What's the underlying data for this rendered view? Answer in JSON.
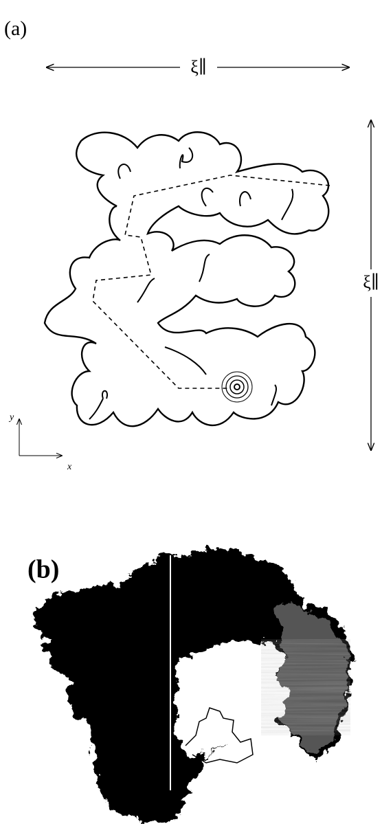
{
  "panel_a": {
    "label": "(a)",
    "horizontal_length": "ξ∥",
    "vertical_length": "ξ∥",
    "axis_y": "y",
    "axis_x": "x"
  },
  "panel_b": {
    "label": "(b)"
  }
}
